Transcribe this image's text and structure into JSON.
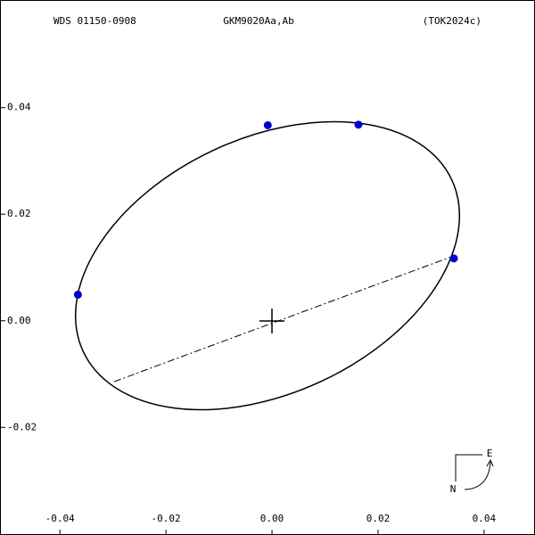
{
  "chart_data": {
    "type": "scatter",
    "annotations": [
      "WDS 01150-0908",
      "GKM9020Aa,Ab",
      "(TOK2024c)"
    ],
    "compass": {
      "north": "N",
      "east": "E"
    },
    "series": [
      {
        "color": "#0000cc",
        "x": [
          -0.0366,
          -0.0008,
          0.0163,
          0.0343
        ],
        "values": [
          0.0049,
          0.0367,
          0.0368,
          0.0117
        ]
      }
    ],
    "xlim": [
      -0.0513,
      0.0496
    ],
    "ylim": [
      -0.0402,
      0.0602
    ],
    "xticks": [
      -0.04,
      -0.02,
      {
        "value": 0,
        "label": "0.00"
      },
      0.02,
      0.04
    ],
    "yticks": [
      -0.02,
      {
        "value": 0,
        "label": "0.00"
      },
      0.02,
      0.04
    ]
  }
}
